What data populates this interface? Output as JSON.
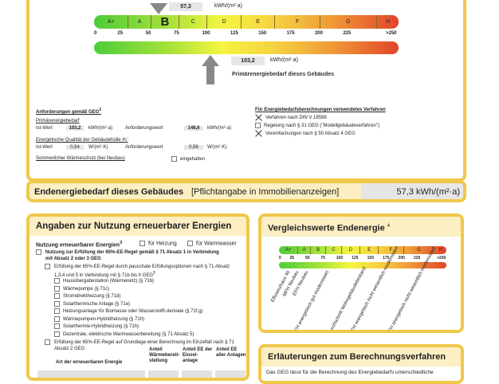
{
  "scale": {
    "classes": [
      {
        "label": "A+",
        "from": 0,
        "to": 30
      },
      {
        "label": "A",
        "from": 30,
        "to": 50
      },
      {
        "label": "B",
        "from": 50,
        "to": 75
      },
      {
        "label": "C",
        "from": 75,
        "to": 100
      },
      {
        "label": "D",
        "from": 100,
        "to": 130
      },
      {
        "label": "E",
        "from": 130,
        "to": 160
      },
      {
        "label": "F",
        "from": 160,
        "to": 200
      },
      {
        "label": "G",
        "from": 200,
        "to": 250
      },
      {
        "label": "H",
        "from": 250,
        "to": 270
      }
    ],
    "ticks": [
      "0",
      "25",
      "50",
      "75",
      "100",
      "125",
      "150",
      "175",
      "200",
      "225",
      ">250"
    ],
    "active_class": "B",
    "endenergie_value": 57.3,
    "endenergie_text": "57,3",
    "unit": "kWh/(m²·a)",
    "primaer_value": 103.2,
    "primaer_text": "103,2",
    "primaer_label": "Primärenergiebedarf dieses Gebäudes"
  },
  "anforderungen": {
    "title": "Anforderungen gemäß GEG",
    "title_sup": "2",
    "primaer_title": "Primärenergiebedarf",
    "ist_label": "Ist-Wert",
    "ist_value": "103,2",
    "unit1": "kWh/(m²·a)",
    "anf_label": "Anforderungswert",
    "anf_value": "148,6",
    "huelle_title": "Energetische Qualität der Gebäudehülle Hₜ'",
    "huelle_ist": "0,54",
    "unit2": "W/(m²·K)",
    "huelle_anf": "0,56",
    "sommer": "Sommerlicher Wärmeschutz (bei Neubau)",
    "eingehalten": "eingehalten"
  },
  "verfahren": {
    "title": "Für Energiebedarfsberechnungen verwendetes Verfahren",
    "items": [
      {
        "label": "Verfahren nach DIN V 18599",
        "checked": true
      },
      {
        "label": "Regelung nach § 31 GEG (\"Modellgebäudeverfahren\")",
        "checked": false
      },
      {
        "label": "Vereinfachungen nach § 50 Absatz 4 GEG",
        "checked": true
      }
    ]
  },
  "endbar": {
    "title": "Endenergiebedarf dieses Gebäudes",
    "note": "[Pflichtangabe in Immobilienanzeigen]",
    "value": "57,3 kWh/(m²·a)"
  },
  "ee": {
    "title": "Angaben zur Nutzung erneuerbarer Energien",
    "nutzung": "Nutzung erneuerbarer Energien",
    "nutzung_sup": "3",
    "heizung": "für Heizung",
    "warmwasser": "für Warmwasser",
    "regel": "Nutzung zur Erfüllung der 65%-EE-Regel gemäß § 71 Absatz 1 in Verbindung mit Absatz 2 oder 3 GEG",
    "pauschal": "Erfüllung der 65%-EE-Regel durch pauschale Erfüllungsoptionen nach § 71 Absatz 1,3,4 und 5 in Verbindung mit § 71b bis h GEG",
    "pauschal_sup": "5",
    "options": [
      "Hausübergabestation (Wärmenetz) (§ 71b)",
      "Wärmepumpe (§ 71c)",
      "Stromdirektheizung (§ 71d)",
      "Solarthermische Anlage (§ 71e)",
      "Heizungsanlage für Biomasse oder Wasserstoff/-derivate (§ 71f,g)",
      "Wärmepumpen-Hybridheizung (§ 71h)",
      "Solarthermie-Hybridheizung (§ 71h)",
      "Dezentrale, elektrische Warmwasserbereitung (§ 71 Absatz 5)"
    ],
    "einzelfall": "Erfüllung der 65%-EE-Regel auf Grundlage einer Berechnung im Einzelfall nach § 71 Absatz 2 GEG",
    "cols": [
      "Art der erneuerbaren Energie",
      "Anteil Wärmebereit-stellung",
      "Anteil EE der Einzel-anlage",
      "Anteil EE aller Anlagen"
    ]
  },
  "vergleich": {
    "title": "Vergleichswerte Endenergie",
    "sup": "4",
    "refs": [
      {
        "label": "Effizienzhaus 40",
        "value": 15
      },
      {
        "label": "MFH Neubau",
        "value": 30
      },
      {
        "label": "EFH Neubau",
        "value": 45
      },
      {
        "label": "EFH energetisch gut modernisiert",
        "value": 78
      },
      {
        "label": "Durchschnitt Wohngebäudebestand",
        "value": 135
      },
      {
        "label": "MFH energetisch nicht wesentlich modernisiert",
        "value": 170
      },
      {
        "label": "EFH energetisch nicht wesentlich modernisiert",
        "value": 230
      }
    ]
  },
  "erl": {
    "title": "Erläuterungen zum Berechnungsverfahren",
    "text": "Das GEG lässt für die Berechnung des Energiebedarfs unterschiedliche"
  }
}
